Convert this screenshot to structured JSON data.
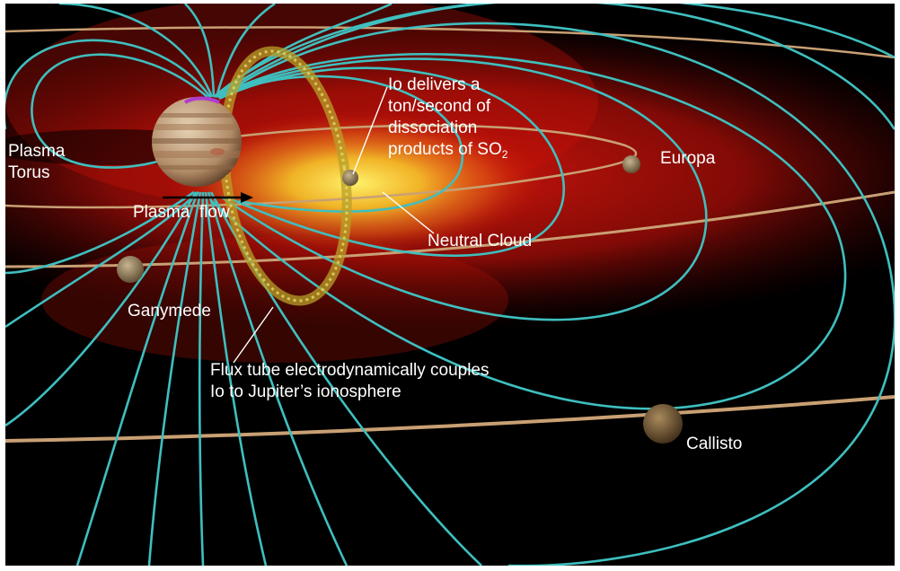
{
  "labels": {
    "plasma_torus": [
      "Plasma",
      "Torus"
    ],
    "plasma_flow": "Plasma  flow",
    "io_note_lines": [
      "Io delivers a",
      "ton/second of",
      "dissociation"
    ],
    "io_note_last": "products of SO",
    "io_note_subscript": "2",
    "europa": "Europa",
    "neutral_cloud": "Neutral Cloud",
    "ganymede": "Ganymede",
    "flux_tube_lines": [
      "Flux tube electrodynamically couples",
      "Io to Jupiter’s ionosphere"
    ],
    "callisto": "Callisto"
  },
  "colors": {
    "background": "#000000",
    "plasma_red": "#c8120a",
    "neutral_cloud_yellow": "#f3d52a",
    "field_lines": "#3fbfbf",
    "orbits": "#c9a074",
    "text": "#ffffff",
    "flow_arrow": "#000000"
  }
}
